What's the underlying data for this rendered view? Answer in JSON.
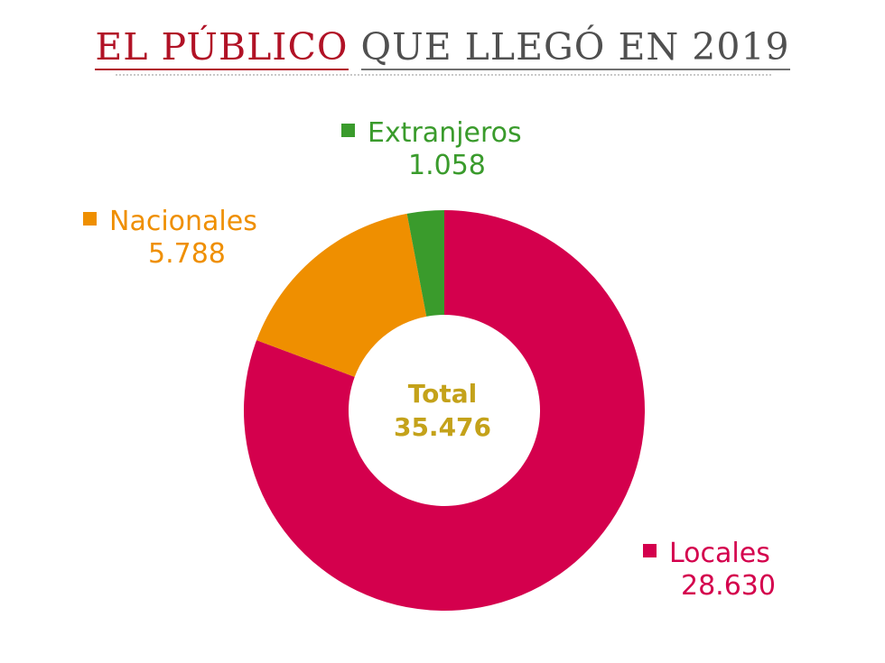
{
  "title": {
    "part1": "EL PÚBLICO",
    "part2": "QUE LLEGÓ EN 2019"
  },
  "total": {
    "label": "Total",
    "value": "35.476"
  },
  "colors": {
    "locales": "#d4004d",
    "nacionales": "#ef8f00",
    "extranjeros": "#3a9b2c",
    "total": "#c4a21a"
  },
  "chart_data": {
    "type": "pie",
    "title": "EL PÚBLICO QUE LLEGÓ EN 2019",
    "series": [
      {
        "name": "Extranjeros",
        "value": 1058,
        "label": "1.058",
        "color": "#3a9b2c"
      },
      {
        "name": "Nacionales",
        "value": 5788,
        "label": "5.788",
        "color": "#ef8f00"
      },
      {
        "name": "Locales",
        "value": 28630,
        "label": "28.630",
        "color": "#d4004d"
      }
    ]
  }
}
